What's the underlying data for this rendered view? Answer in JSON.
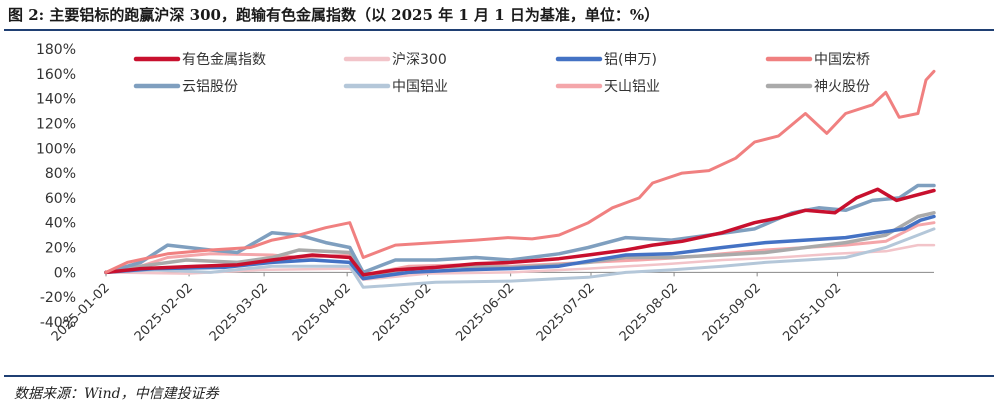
{
  "title": "图 2: 主要铝标的跑赢沪深 300，跑输有色金属指数（以 2025 年 1 月 1 日为基准，单位：%）",
  "source": "数据来源：Wind，中信建投证券",
  "chart_data": {
    "type": "line",
    "ylim": [
      -40,
      180
    ],
    "yticks": [
      -40,
      -20,
      0,
      20,
      40,
      60,
      80,
      100,
      120,
      140,
      160,
      180
    ],
    "ytick_labels": [
      "-40%",
      "-20%",
      "0%",
      "20%",
      "40%",
      "60%",
      "80%",
      "100%",
      "120%",
      "140%",
      "160%",
      "180%"
    ],
    "x_start": "2025-01-02",
    "x_end": "2025-11-07",
    "xticks": [
      "2025-01-02",
      "2025-02-02",
      "2025-03-02",
      "2025-04-02",
      "2025-05-02",
      "2025-06-02",
      "2025-07-02",
      "2025-08-02",
      "2025-09-02",
      "2025-10-02"
    ],
    "grid": false,
    "legend_position": "top",
    "series": [
      {
        "name": "有色金属指数",
        "color": "#c8102e",
        "width": 3.5,
        "points": [
          [
            "2025-01-02",
            0
          ],
          [
            "2025-01-15",
            3
          ],
          [
            "2025-02-05",
            5
          ],
          [
            "2025-02-20",
            6
          ],
          [
            "2025-03-05",
            10
          ],
          [
            "2025-03-20",
            14
          ],
          [
            "2025-04-03",
            12
          ],
          [
            "2025-04-08",
            -2
          ],
          [
            "2025-04-20",
            2
          ],
          [
            "2025-05-05",
            4
          ],
          [
            "2025-05-20",
            7
          ],
          [
            "2025-06-02",
            8
          ],
          [
            "2025-06-20",
            11
          ],
          [
            "2025-07-01",
            14
          ],
          [
            "2025-07-15",
            18
          ],
          [
            "2025-07-25",
            22
          ],
          [
            "2025-08-05",
            25
          ],
          [
            "2025-08-20",
            32
          ],
          [
            "2025-09-01",
            40
          ],
          [
            "2025-09-10",
            44
          ],
          [
            "2025-09-20",
            50
          ],
          [
            "2025-10-01",
            48
          ],
          [
            "2025-10-09",
            60
          ],
          [
            "2025-10-17",
            67
          ],
          [
            "2025-10-24",
            58
          ],
          [
            "2025-10-31",
            62
          ],
          [
            "2025-11-07",
            66
          ]
        ]
      },
      {
        "name": "沪深300",
        "color": "#f2c4c9",
        "width": 2.5,
        "points": [
          [
            "2025-01-02",
            0
          ],
          [
            "2025-02-01",
            -1
          ],
          [
            "2025-03-01",
            2
          ],
          [
            "2025-04-03",
            3
          ],
          [
            "2025-04-08",
            -6
          ],
          [
            "2025-05-02",
            -1
          ],
          [
            "2025-06-02",
            0
          ],
          [
            "2025-07-01",
            3
          ],
          [
            "2025-08-01",
            7
          ],
          [
            "2025-08-20",
            10
          ],
          [
            "2025-09-10",
            12
          ],
          [
            "2025-10-01",
            15
          ],
          [
            "2025-10-20",
            17
          ],
          [
            "2025-11-01",
            22
          ],
          [
            "2025-11-07",
            22
          ]
        ]
      },
      {
        "name": "铝(申万)",
        "color": "#4472c4",
        "width": 3.5,
        "points": [
          [
            "2025-01-02",
            0
          ],
          [
            "2025-01-20",
            3
          ],
          [
            "2025-02-15",
            4
          ],
          [
            "2025-03-05",
            8
          ],
          [
            "2025-03-20",
            10
          ],
          [
            "2025-04-03",
            8
          ],
          [
            "2025-04-08",
            -5
          ],
          [
            "2025-04-25",
            0
          ],
          [
            "2025-05-15",
            2
          ],
          [
            "2025-06-02",
            3
          ],
          [
            "2025-06-20",
            5
          ],
          [
            "2025-07-01",
            9
          ],
          [
            "2025-07-15",
            14
          ],
          [
            "2025-08-01",
            15
          ],
          [
            "2025-08-20",
            20
          ],
          [
            "2025-09-05",
            24
          ],
          [
            "2025-09-20",
            26
          ],
          [
            "2025-10-05",
            28
          ],
          [
            "2025-10-17",
            32
          ],
          [
            "2025-10-27",
            35
          ],
          [
            "2025-11-02",
            42
          ],
          [
            "2025-11-07",
            45
          ]
        ]
      },
      {
        "name": "中国宏桥",
        "color": "#f08080",
        "width": 3,
        "points": [
          [
            "2025-01-02",
            0
          ],
          [
            "2025-01-10",
            8
          ],
          [
            "2025-01-25",
            15
          ],
          [
            "2025-02-10",
            18
          ],
          [
            "2025-02-25",
            20
          ],
          [
            "2025-03-05",
            26
          ],
          [
            "2025-03-15",
            30
          ],
          [
            "2025-03-25",
            36
          ],
          [
            "2025-04-03",
            40
          ],
          [
            "2025-04-08",
            12
          ],
          [
            "2025-04-20",
            22
          ],
          [
            "2025-05-05",
            24
          ],
          [
            "2025-05-20",
            26
          ],
          [
            "2025-06-01",
            28
          ],
          [
            "2025-06-10",
            27
          ],
          [
            "2025-06-20",
            30
          ],
          [
            "2025-07-01",
            40
          ],
          [
            "2025-07-10",
            52
          ],
          [
            "2025-07-20",
            60
          ],
          [
            "2025-07-25",
            72
          ],
          [
            "2025-08-05",
            80
          ],
          [
            "2025-08-15",
            82
          ],
          [
            "2025-08-25",
            92
          ],
          [
            "2025-09-01",
            105
          ],
          [
            "2025-09-10",
            110
          ],
          [
            "2025-09-20",
            128
          ],
          [
            "2025-09-28",
            112
          ],
          [
            "2025-10-05",
            128
          ],
          [
            "2025-10-15",
            135
          ],
          [
            "2025-10-20",
            145
          ],
          [
            "2025-10-25",
            125
          ],
          [
            "2025-11-01",
            128
          ],
          [
            "2025-11-04",
            155
          ],
          [
            "2025-11-07",
            162
          ]
        ]
      },
      {
        "name": "云铝股份",
        "color": "#7f9fbf",
        "width": 3.5,
        "points": [
          [
            "2025-01-02",
            0
          ],
          [
            "2025-01-15",
            8
          ],
          [
            "2025-01-25",
            22
          ],
          [
            "2025-02-10",
            18
          ],
          [
            "2025-02-20",
            16
          ],
          [
            "2025-03-05",
            32
          ],
          [
            "2025-03-15",
            30
          ],
          [
            "2025-03-25",
            24
          ],
          [
            "2025-04-03",
            20
          ],
          [
            "2025-04-08",
            0
          ],
          [
            "2025-04-20",
            10
          ],
          [
            "2025-05-05",
            10
          ],
          [
            "2025-05-20",
            12
          ],
          [
            "2025-06-02",
            10
          ],
          [
            "2025-06-20",
            15
          ],
          [
            "2025-07-01",
            20
          ],
          [
            "2025-07-15",
            28
          ],
          [
            "2025-08-01",
            26
          ],
          [
            "2025-08-15",
            30
          ],
          [
            "2025-09-01",
            35
          ],
          [
            "2025-09-15",
            48
          ],
          [
            "2025-09-25",
            52
          ],
          [
            "2025-10-05",
            50
          ],
          [
            "2025-10-15",
            58
          ],
          [
            "2025-10-25",
            60
          ],
          [
            "2025-11-01",
            70
          ],
          [
            "2025-11-07",
            70
          ]
        ]
      },
      {
        "name": "中国铝业",
        "color": "#b4c7d9",
        "width": 3,
        "points": [
          [
            "2025-01-02",
            0
          ],
          [
            "2025-01-20",
            2
          ],
          [
            "2025-02-10",
            0
          ],
          [
            "2025-03-05",
            5
          ],
          [
            "2025-04-03",
            5
          ],
          [
            "2025-04-08",
            -12
          ],
          [
            "2025-05-05",
            -8
          ],
          [
            "2025-06-02",
            -7
          ],
          [
            "2025-06-20",
            -5
          ],
          [
            "2025-07-01",
            -4
          ],
          [
            "2025-07-15",
            0
          ],
          [
            "2025-08-01",
            2
          ],
          [
            "2025-08-20",
            5
          ],
          [
            "2025-09-05",
            8
          ],
          [
            "2025-09-20",
            10
          ],
          [
            "2025-10-05",
            12
          ],
          [
            "2025-10-20",
            20
          ],
          [
            "2025-11-01",
            30
          ],
          [
            "2025-11-07",
            35
          ]
        ]
      },
      {
        "name": "天山铝业",
        "color": "#f4a6aa",
        "width": 3,
        "points": [
          [
            "2025-01-02",
            0
          ],
          [
            "2025-01-15",
            5
          ],
          [
            "2025-01-25",
            12
          ],
          [
            "2025-02-10",
            15
          ],
          [
            "2025-03-05",
            14
          ],
          [
            "2025-03-15",
            12
          ],
          [
            "2025-04-03",
            14
          ],
          [
            "2025-04-08",
            -2
          ],
          [
            "2025-04-25",
            5
          ],
          [
            "2025-05-15",
            6
          ],
          [
            "2025-06-02",
            5
          ],
          [
            "2025-06-20",
            7
          ],
          [
            "2025-07-01",
            8
          ],
          [
            "2025-07-20",
            10
          ],
          [
            "2025-08-05",
            12
          ],
          [
            "2025-08-20",
            15
          ],
          [
            "2025-09-05",
            18
          ],
          [
            "2025-09-20",
            20
          ],
          [
            "2025-10-05",
            22
          ],
          [
            "2025-10-20",
            25
          ],
          [
            "2025-11-01",
            38
          ],
          [
            "2025-11-07",
            40
          ]
        ]
      },
      {
        "name": "神火股份",
        "color": "#aaaaaa",
        "width": 3.5,
        "points": [
          [
            "2025-01-02",
            0
          ],
          [
            "2025-01-15",
            5
          ],
          [
            "2025-02-01",
            10
          ],
          [
            "2025-02-20",
            8
          ],
          [
            "2025-03-05",
            12
          ],
          [
            "2025-03-15",
            18
          ],
          [
            "2025-04-03",
            16
          ],
          [
            "2025-04-08",
            -3
          ],
          [
            "2025-04-25",
            3
          ],
          [
            "2025-05-15",
            5
          ],
          [
            "2025-06-02",
            4
          ],
          [
            "2025-06-20",
            6
          ],
          [
            "2025-07-01",
            8
          ],
          [
            "2025-07-15",
            12
          ],
          [
            "2025-08-01",
            12
          ],
          [
            "2025-08-20",
            14
          ],
          [
            "2025-09-05",
            16
          ],
          [
            "2025-09-20",
            20
          ],
          [
            "2025-10-05",
            24
          ],
          [
            "2025-10-20",
            30
          ],
          [
            "2025-11-01",
            45
          ],
          [
            "2025-11-07",
            48
          ]
        ]
      }
    ]
  }
}
